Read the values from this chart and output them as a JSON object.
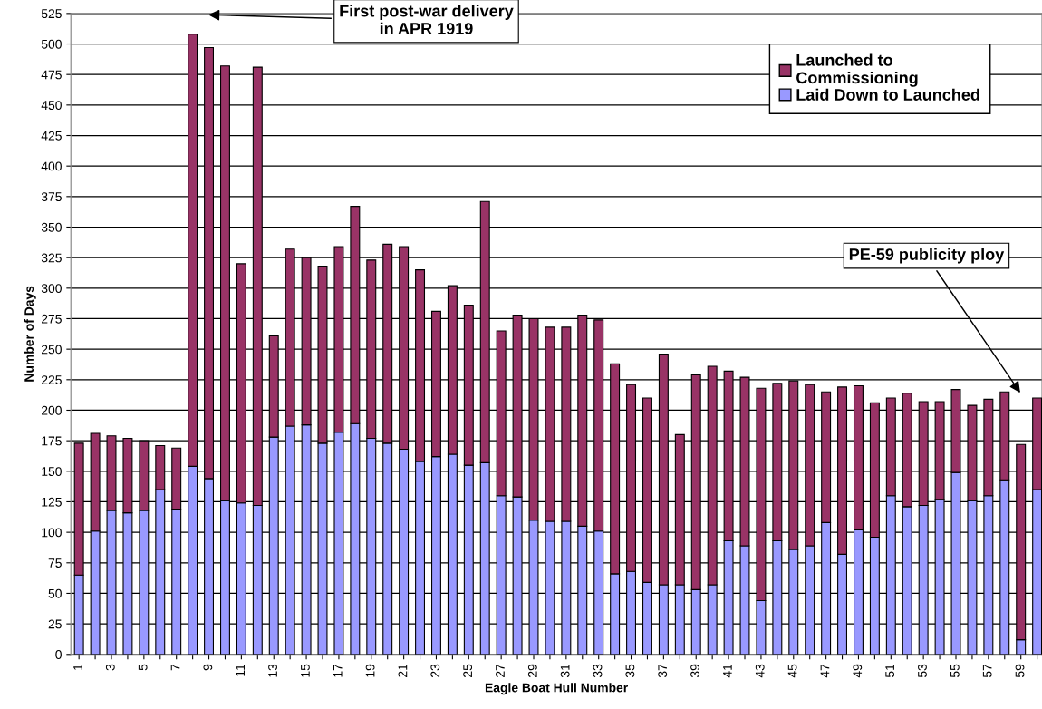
{
  "chart_data": {
    "type": "bar",
    "stacked": true,
    "xlabel": "Eagle Boat Hull Number",
    "ylabel": "Number of Days",
    "categories": [
      "1",
      null,
      "3",
      null,
      "5",
      null,
      "7",
      null,
      "9",
      null,
      "11",
      null,
      "13",
      null,
      "15",
      null,
      "17",
      null,
      "19",
      null,
      "21",
      null,
      "23",
      null,
      "25",
      null,
      "27",
      null,
      "29",
      null,
      "31",
      null,
      "33",
      null,
      "35",
      null,
      "37",
      null,
      "39",
      null,
      "41",
      null,
      "43",
      null,
      "45",
      null,
      "47",
      null,
      "49",
      null,
      "51",
      null,
      "53",
      null,
      "55",
      null,
      "57",
      null,
      "59",
      null
    ],
    "series": [
      {
        "name": "Laid Down to Launched",
        "color": "#9999ff",
        "values": [
          65,
          101,
          118,
          116,
          118,
          135,
          119,
          154,
          144,
          126,
          124,
          122,
          178,
          187,
          188,
          173,
          182,
          189,
          177,
          173,
          168,
          158,
          162,
          164,
          155,
          157,
          130,
          129,
          110,
          109,
          109,
          105,
          101,
          66,
          68,
          59,
          57,
          57,
          53,
          57,
          93,
          89,
          44,
          93,
          86,
          89,
          108,
          82,
          102,
          96,
          130,
          121,
          122,
          127,
          149,
          126,
          130,
          143,
          12,
          135
        ]
      },
      {
        "name": "Launched to Commissioning",
        "color": "#993366",
        "values": [
          108,
          80,
          61,
          61,
          57,
          36,
          50,
          354,
          353,
          356,
          196,
          359,
          83,
          145,
          137,
          145,
          152,
          178,
          146,
          163,
          166,
          157,
          119,
          138,
          131,
          214,
          135,
          149,
          165,
          159,
          159,
          173,
          173,
          172,
          153,
          151,
          189,
          123,
          176,
          179,
          139,
          138,
          174,
          129,
          138,
          132,
          107,
          137,
          118,
          110,
          80,
          93,
          85,
          80,
          68,
          78,
          79,
          72,
          160,
          75
        ]
      }
    ],
    "ylim": [
      0,
      525
    ],
    "yticks": [
      0,
      25,
      50,
      75,
      100,
      125,
      150,
      175,
      200,
      225,
      250,
      275,
      300,
      325,
      350,
      375,
      400,
      425,
      450,
      475,
      500,
      525
    ],
    "grid": "y",
    "legend": "top right",
    "annotations": [
      "First post-war delivery\nin APR 1919",
      "PE-59 publicity ploy"
    ]
  }
}
